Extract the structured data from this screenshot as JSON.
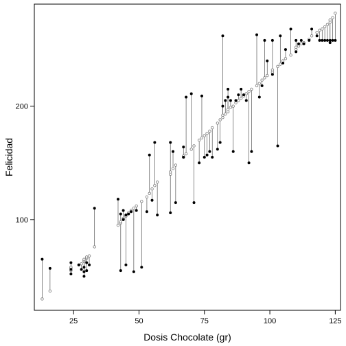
{
  "chart_data": {
    "type": "scatter",
    "title": "",
    "xlabel": "Dosis Chocolate (gr)",
    "ylabel": "Felicidad",
    "xlim": [
      10,
      127
    ],
    "ylim": [
      20,
      290
    ],
    "xticks": [
      "25",
      "50",
      "75",
      "100",
      "125"
    ],
    "yticks": [
      "100",
      "200"
    ],
    "grid": false,
    "legend": "none",
    "series": [
      {
        "role": "observed",
        "marker": "filled-circle",
        "color": "#000000",
        "x": [
          13,
          16,
          24,
          24,
          24,
          27,
          28,
          29,
          29,
          29,
          30,
          30,
          31,
          33,
          42,
          43,
          43,
          44,
          44,
          45,
          45,
          46,
          47,
          48,
          49,
          51,
          53,
          54,
          55,
          56,
          57,
          62,
          62,
          63,
          64,
          67,
          67,
          68,
          70,
          71,
          73,
          74,
          75,
          76,
          77,
          78,
          80,
          81,
          82,
          82,
          83,
          84,
          84,
          85,
          86,
          87,
          88,
          89,
          90,
          91,
          92,
          93,
          95,
          96,
          97,
          98,
          99,
          101,
          101,
          103,
          104,
          105,
          106,
          108,
          110,
          110,
          111,
          112,
          113,
          115,
          116,
          118,
          119,
          120,
          121,
          122,
          123,
          123,
          124,
          125
        ],
        "y": [
          65,
          57,
          62,
          56,
          52,
          60,
          56,
          58,
          54,
          50,
          62,
          55,
          60,
          110,
          118,
          105,
          55,
          108,
          100,
          60,
          104,
          105,
          107,
          54,
          108,
          58,
          107,
          157,
          117,
          168,
          104,
          106,
          168,
          160,
          115,
          164,
          155,
          208,
          211,
          115,
          150,
          209,
          155,
          157,
          160,
          155,
          162,
          168,
          262,
          200,
          205,
          215,
          208,
          205,
          160,
          205,
          210,
          215,
          210,
          205,
          150,
          160,
          263,
          208,
          218,
          258,
          240,
          228,
          258,
          165,
          262,
          238,
          250,
          268,
          248,
          258,
          255,
          258,
          255,
          258,
          268,
          262,
          258,
          258,
          258,
          258,
          258,
          256,
          258,
          258
        ]
      },
      {
        "role": "fitted",
        "marker": "open-circle",
        "color": "#777777",
        "x": [
          13,
          16,
          24,
          24,
          24,
          27,
          28,
          29,
          29,
          29,
          30,
          30,
          31,
          33,
          42,
          43,
          43,
          44,
          44,
          45,
          45,
          46,
          47,
          48,
          49,
          51,
          53,
          54,
          55,
          56,
          57,
          62,
          62,
          63,
          64,
          67,
          67,
          68,
          70,
          71,
          73,
          74,
          75,
          76,
          77,
          78,
          80,
          81,
          82,
          82,
          83,
          84,
          84,
          85,
          86,
          87,
          88,
          89,
          90,
          91,
          92,
          93,
          95,
          96,
          97,
          98,
          99,
          101,
          101,
          103,
          104,
          105,
          106,
          108,
          110,
          110,
          111,
          112,
          113,
          115,
          116,
          118,
          119,
          120,
          121,
          122,
          123,
          123,
          124,
          125
        ],
        "y": [
          30,
          37,
          55,
          57,
          58,
          60,
          61,
          63,
          64,
          65,
          66,
          67,
          68,
          76,
          95,
          97,
          98,
          100,
          101,
          103,
          104,
          106,
          108,
          110,
          112,
          116,
          120,
          123,
          127,
          130,
          133,
          140,
          142,
          145,
          148,
          155,
          156,
          158,
          162,
          165,
          170,
          172,
          174,
          176,
          178,
          181,
          185,
          188,
          190,
          192,
          193,
          195,
          197,
          199,
          200,
          203,
          205,
          207,
          209,
          211,
          213,
          215,
          218,
          220,
          223,
          225,
          227,
          230,
          232,
          235,
          237,
          240,
          242,
          245,
          250,
          252,
          253,
          255,
          256,
          259,
          262,
          265,
          267,
          268,
          270,
          272,
          274,
          276,
          278,
          282
        ]
      }
    ]
  }
}
